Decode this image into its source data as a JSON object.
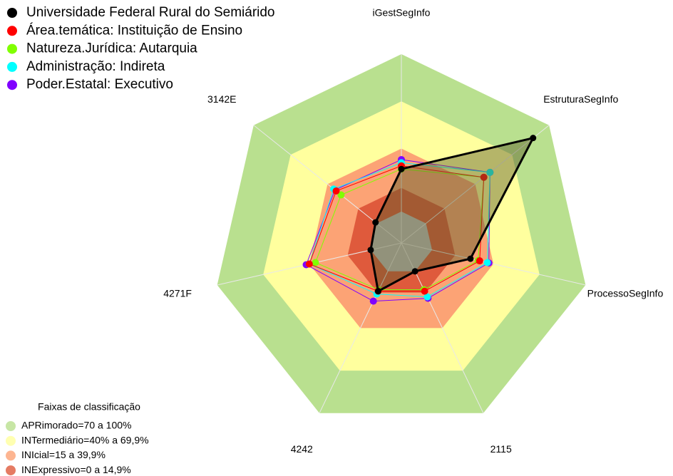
{
  "chart_data": {
    "type": "radar",
    "categories": [
      "iGestSegInfo",
      "EstruturaSegInfo",
      "ProcessoSegInfo",
      "2115",
      "4242",
      "4271F",
      "3142E"
    ],
    "rlim": [
      -20,
      100
    ],
    "center_color": "#c0c0c0",
    "bands_title": "Faixas de classificação",
    "bands": [
      {
        "label": "APRimorado=70 a 100%",
        "from": 70,
        "to": 100,
        "color": "#b9e08f"
      },
      {
        "label": "INTermediário=40% a 69,9%",
        "from": 40,
        "to": 70,
        "color": "#ffff9e"
      },
      {
        "label": "INIcial=15 a 39,9%",
        "from": 15,
        "to": 40,
        "color": "#fca375"
      },
      {
        "label": "INExpressivo=0 a 14,9%",
        "from": 0,
        "to": 15,
        "color": "#df5a3c"
      }
    ],
    "series": [
      {
        "name": "Universidade Federal Rural do Semiárido",
        "color": "#000000",
        "values": [
          27,
          87,
          25,
          0,
          14,
          0,
          1
        ]
      },
      {
        "name": "Área.temática: Instituição de Ensino",
        "color": "#ff0000",
        "values": [
          29,
          47,
          31,
          14,
          14,
          40,
          33
        ]
      },
      {
        "name": "Natureza.Jurídica: Autarquia",
        "color": "#80ff00",
        "values": [
          27,
          47,
          30,
          13,
          13,
          36,
          29
        ]
      },
      {
        "name": "Administração: Indireta",
        "color": "#00ffff",
        "values": [
          31,
          52,
          36,
          18,
          16,
          40,
          35
        ]
      },
      {
        "name": "Poder.Estatal: Executivo",
        "color": "#8000ff",
        "values": [
          33,
          52,
          37,
          19,
          21,
          42,
          34
        ]
      }
    ]
  }
}
